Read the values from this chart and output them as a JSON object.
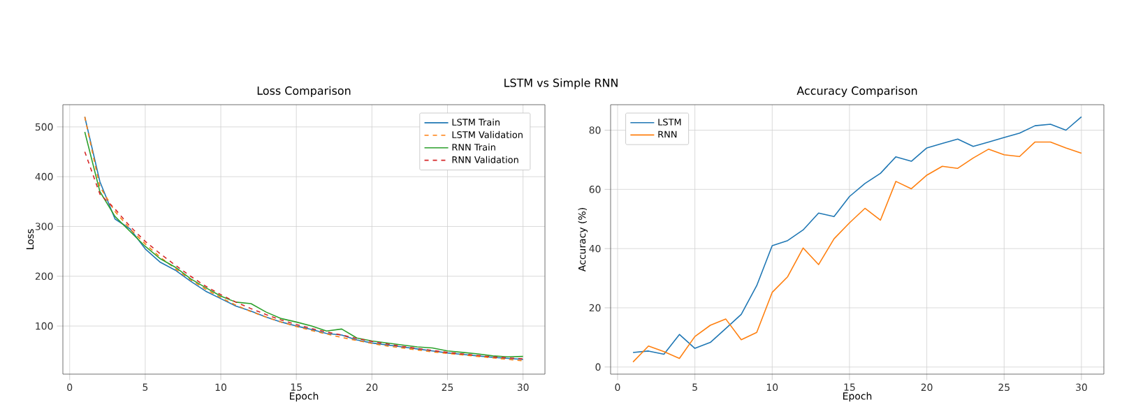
{
  "chart_data": [
    {
      "type": "line",
      "title": "Loss Comparison",
      "xlabel": "Epoch",
      "ylabel": "Loss",
      "annotations": [
        "LSTM vs Simple RNN"
      ],
      "x": [
        1,
        2,
        3,
        4,
        5,
        6,
        7,
        8,
        9,
        10,
        11,
        12,
        13,
        14,
        15,
        16,
        17,
        18,
        19,
        20,
        21,
        22,
        23,
        24,
        25,
        26,
        27,
        28,
        29,
        30
      ],
      "xlim": [
        -0.45,
        31.45
      ],
      "xticks": [
        0,
        5,
        10,
        15,
        20,
        25,
        30
      ],
      "ylim": [
        3.4,
        544.6
      ],
      "yticks": [
        100,
        200,
        300,
        400,
        500
      ],
      "grid": true,
      "legend": "top right",
      "series": [
        {
          "name": "LSTM Train",
          "color": "#1f77b4",
          "line_style": "solid",
          "values": [
            520,
            390,
            315,
            295,
            255,
            228,
            212,
            190,
            170,
            155,
            140,
            130,
            118,
            108,
            100,
            93,
            85,
            82,
            72,
            66,
            62,
            58,
            54,
            50,
            46,
            43,
            40,
            37,
            35,
            33
          ]
        },
        {
          "name": "LSTM Validation",
          "color": "#ff7f0e",
          "line_style": "dashed",
          "values": [
            520,
            380,
            330,
            295,
            265,
            238,
            215,
            193,
            174,
            157,
            142,
            129,
            118,
            108,
            99,
            91,
            84,
            77,
            71,
            65,
            60,
            56,
            52,
            48,
            45,
            42,
            39,
            36,
            33,
            30
          ]
        },
        {
          "name": "RNN Train",
          "color": "#2ca02c",
          "line_style": "solid",
          "values": [
            490,
            370,
            320,
            290,
            260,
            235,
            218,
            195,
            177,
            160,
            148,
            145,
            128,
            115,
            108,
            100,
            90,
            94,
            76,
            70,
            66,
            62,
            58,
            56,
            50,
            47,
            44,
            40,
            38,
            39
          ]
        },
        {
          "name": "RNN Validation",
          "color": "#d62728",
          "line_style": "dashed",
          "values": [
            450,
            365,
            335,
            300,
            270,
            245,
            222,
            200,
            180,
            163,
            148,
            135,
            123,
            112,
            103,
            95,
            88,
            82,
            75,
            69,
            64,
            59,
            55,
            51,
            47,
            44,
            41,
            38,
            36,
            34
          ]
        }
      ]
    },
    {
      "type": "line",
      "title": "Accuracy Comparison",
      "xlabel": "Epoch",
      "ylabel": "Accuracy (%)",
      "x": [
        1,
        2,
        3,
        4,
        5,
        6,
        7,
        8,
        9,
        10,
        11,
        12,
        13,
        14,
        15,
        16,
        17,
        18,
        19,
        20,
        21,
        22,
        23,
        24,
        25,
        26,
        27,
        28,
        29,
        30
      ],
      "xlim": [
        -0.45,
        31.45
      ],
      "xticks": [
        0,
        5,
        10,
        15,
        20,
        25,
        30
      ],
      "ylim": [
        -2.4,
        88.6
      ],
      "yticks": [
        0,
        20,
        40,
        60,
        80
      ],
      "grid": true,
      "legend": "top left",
      "series": [
        {
          "name": "LSTM",
          "color": "#1f77b4",
          "line_style": "solid",
          "values": [
            4.9,
            5.4,
            4.3,
            11,
            6.3,
            8.3,
            13,
            17.8,
            27.5,
            41,
            42.7,
            46.3,
            52,
            50.8,
            57.6,
            62,
            65.4,
            71,
            69.5,
            74,
            75.5,
            77,
            74.5,
            76,
            77.5,
            79,
            81.5,
            82,
            80,
            84.5
          ]
        },
        {
          "name": "RNN",
          "color": "#ff7f0e",
          "line_style": "solid",
          "values": [
            1.7,
            7.1,
            5.2,
            2.9,
            10.3,
            14.1,
            16.2,
            9.2,
            11.7,
            25.2,
            30.5,
            40.2,
            34.6,
            43.3,
            48.7,
            53.6,
            49.6,
            62.7,
            60.2,
            64.8,
            67.8,
            67.1,
            70.6,
            73.6,
            71.7,
            71.1,
            76,
            76,
            74,
            72.2
          ]
        }
      ]
    }
  ]
}
